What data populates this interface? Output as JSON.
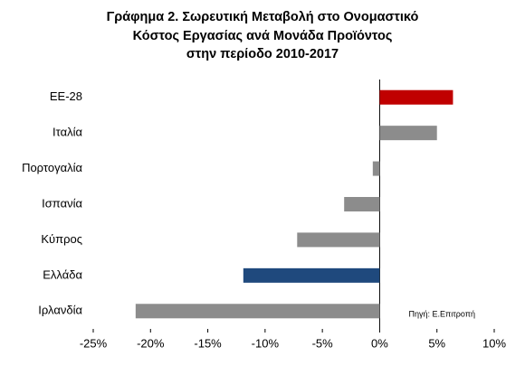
{
  "chart_data": {
    "type": "hbar",
    "title": [
      "Γράφημα 2. Σωρευτική Μεταβολή στο Ονομαστικό",
      "Κόστος Εργασίας ανά Μονάδα Προϊόντος",
      "στην περίοδο 2010-2017"
    ],
    "categories": [
      "ΕΕ-28",
      "Ιταλία",
      "Πορτογαλία",
      "Ισπανία",
      "Κύπρος",
      "Ελλάδα",
      "Ιρλανδία"
    ],
    "values": [
      6.4,
      5.0,
      -0.6,
      -3.1,
      -7.2,
      -11.9,
      -21.3
    ],
    "colors": [
      "#c00000",
      "#8c8c8c",
      "#8c8c8c",
      "#8c8c8c",
      "#8c8c8c",
      "#1f497d",
      "#8c8c8c"
    ],
    "xlim": [
      -25,
      10
    ],
    "xticks": [
      {
        "value": -25,
        "label": "-25%"
      },
      {
        "value": -20,
        "label": "-20%"
      },
      {
        "value": -15,
        "label": "-15%"
      },
      {
        "value": -10,
        "label": "-10%"
      },
      {
        "value": -5,
        "label": "-5%"
      },
      {
        "value": 0,
        "label": "0%"
      },
      {
        "value": 5,
        "label": "5%"
      },
      {
        "value": 10,
        "label": "10%"
      }
    ],
    "annotation": "Πηγή: Ε.Επιτροπή"
  }
}
